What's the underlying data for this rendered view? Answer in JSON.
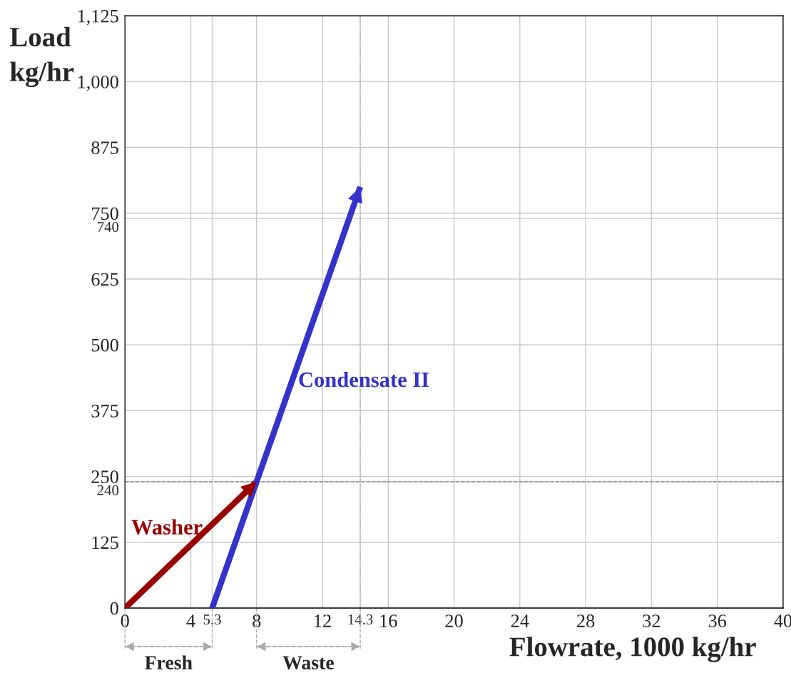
{
  "chart_data": {
    "type": "line",
    "xlabel": "Flowrate, 1000 kg/hr",
    "ylabel": "Load\nkg/hr",
    "series": [
      {
        "name": "Washer",
        "color": "#990000",
        "x": [
          0,
          8
        ],
        "values": [
          0,
          240
        ]
      },
      {
        "name": "Condensate II",
        "color": "#3333cc",
        "x": [
          5.3,
          14.3
        ],
        "values": [
          0,
          800
        ]
      }
    ],
    "xlim": [
      0,
      40
    ],
    "ylim": [
      0,
      1125
    ],
    "xticks": [
      0,
      4,
      {
        "value": 5.3,
        "label": "5.3"
      },
      8,
      12,
      {
        "value": 14.3,
        "label": "14.3"
      },
      16,
      20,
      24,
      28,
      32,
      36,
      40
    ],
    "yticks": [
      0,
      125,
      {
        "value": 240,
        "label": "240"
      },
      250,
      375,
      500,
      625,
      {
        "value": 740,
        "label": "740"
      },
      750,
      875,
      {
        "value": 1000,
        "label": "1,000"
      },
      {
        "value": 1125,
        "label": "1,125"
      }
    ],
    "ref_lines": [
      {
        "axis": "y",
        "value": 240,
        "color": "#888888",
        "line_style": "dashed"
      },
      {
        "axis": "x",
        "value": 14.3,
        "color": "#bbbbbb",
        "line_style": "dashed"
      }
    ],
    "annotations": [
      "Fresh",
      "Waste"
    ],
    "grid": true,
    "legend": false,
    "marker": "none",
    "line_style": "solid"
  }
}
